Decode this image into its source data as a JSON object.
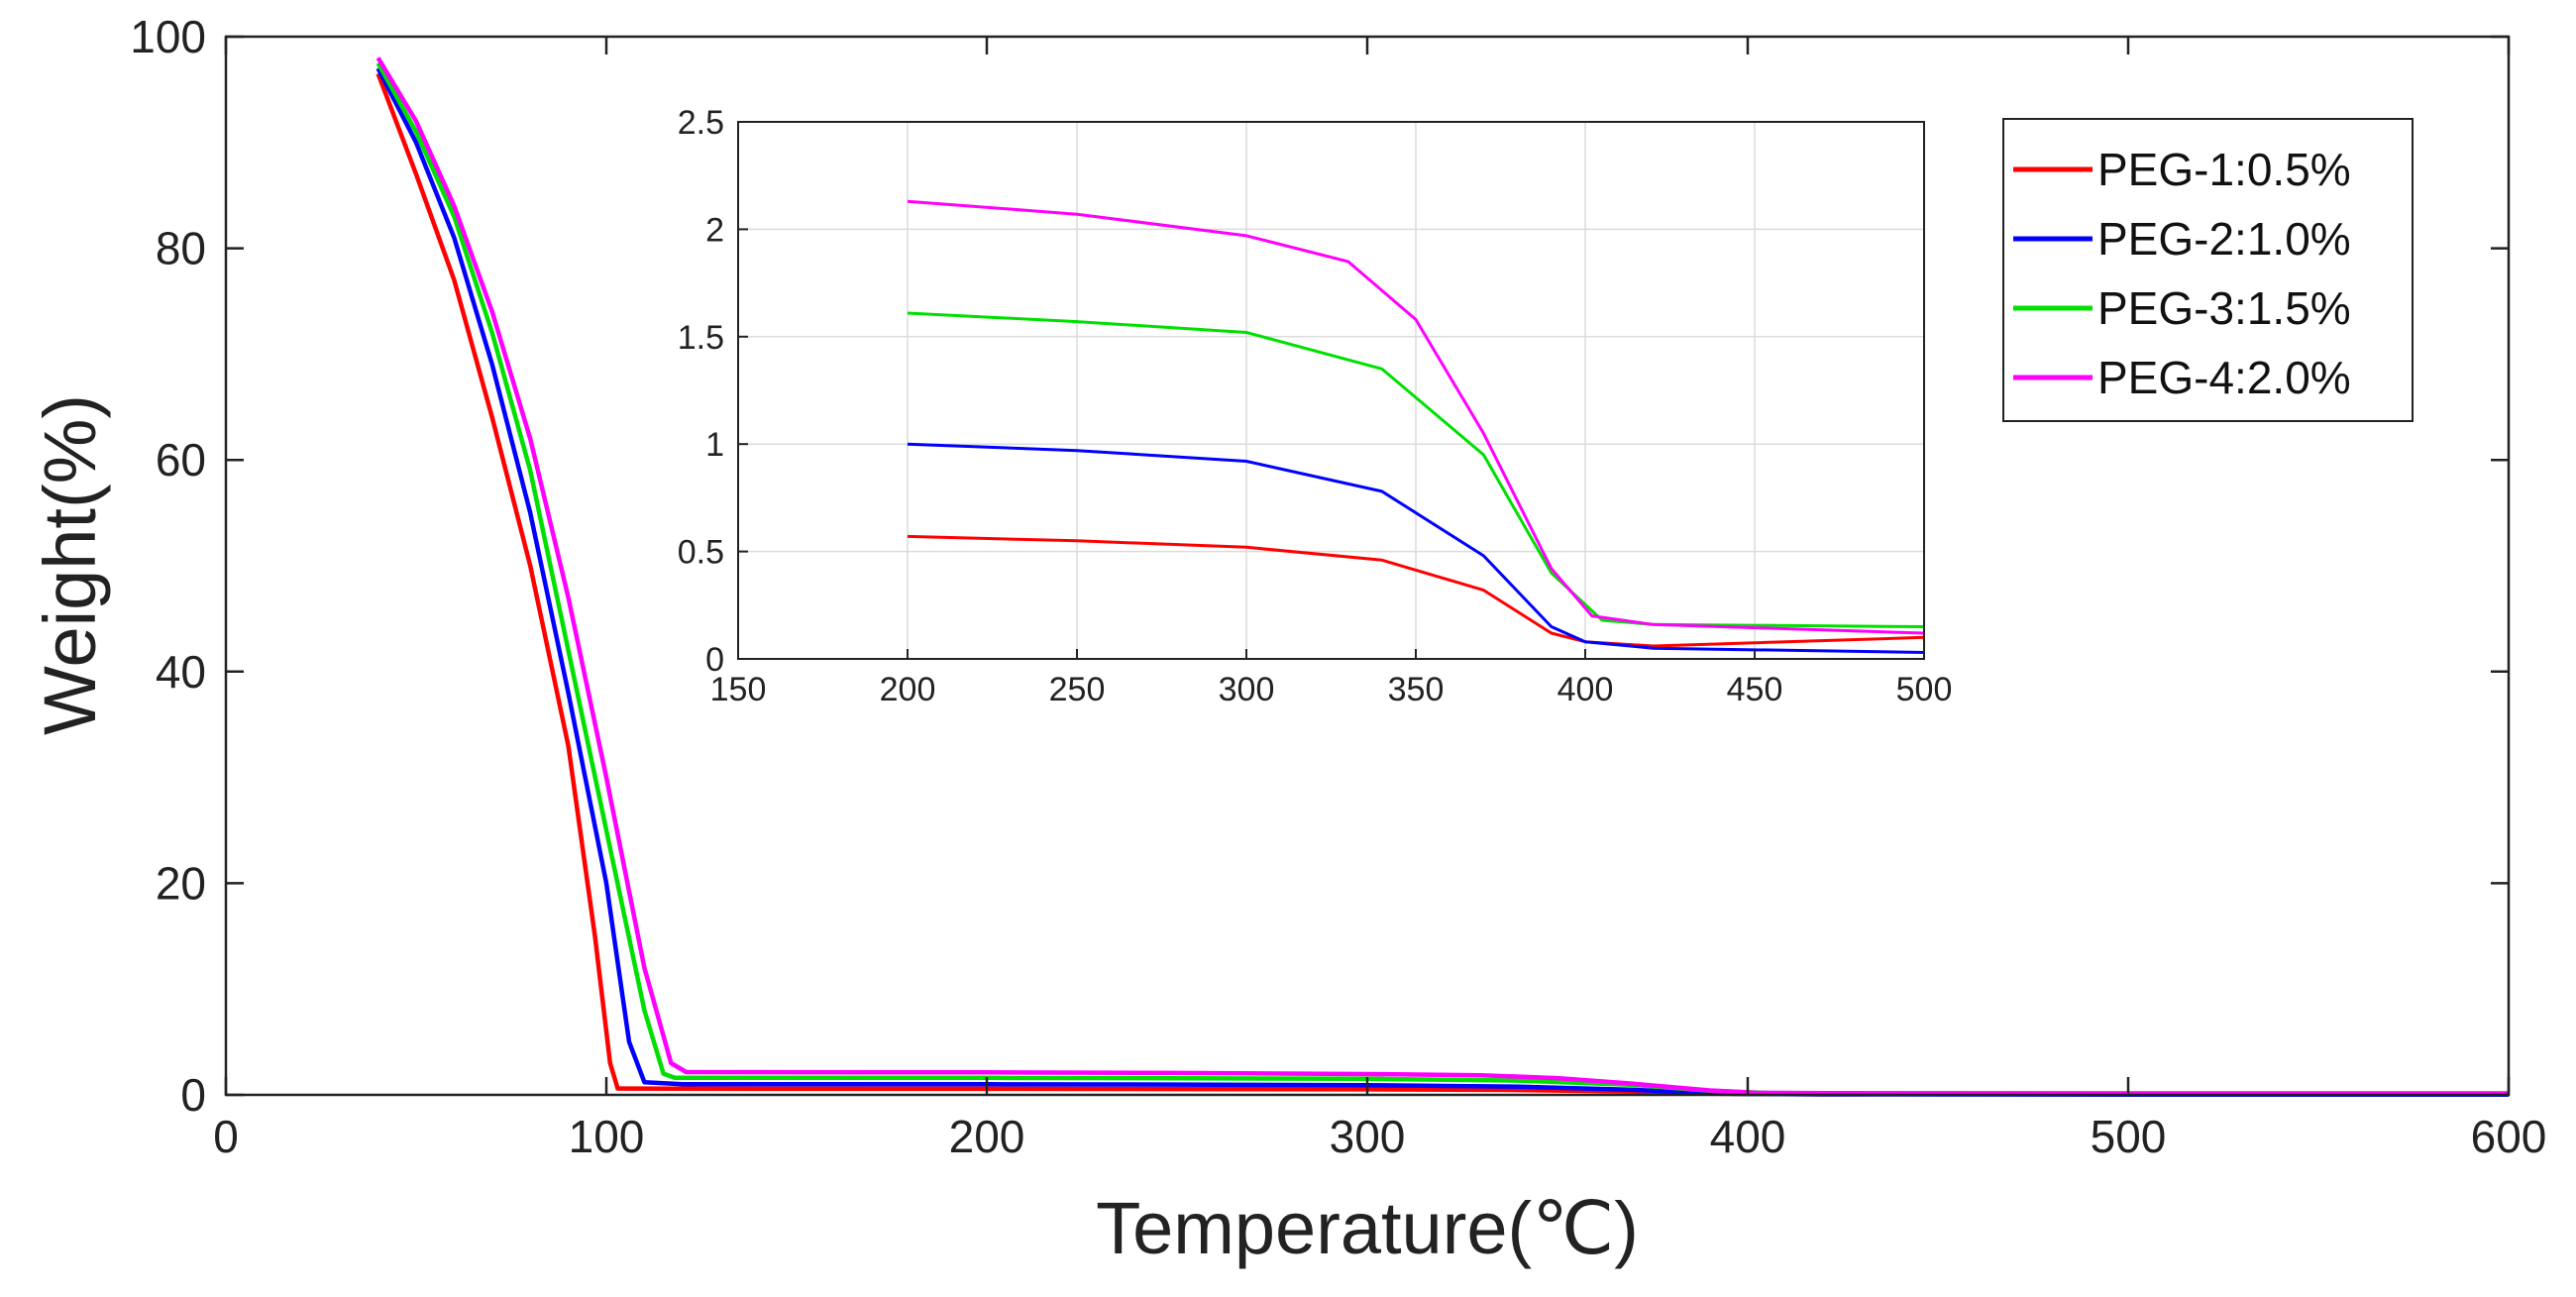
{
  "chart_data": [
    {
      "type": "line",
      "xlabel": "Temperature(℃)",
      "ylabel": "Weight(%)",
      "xlim": [
        0,
        600
      ],
      "ylim": [
        0,
        100
      ],
      "xticks": [
        0,
        100,
        200,
        300,
        400,
        500,
        600
      ],
      "yticks": [
        0,
        20,
        40,
        60,
        80,
        100
      ],
      "xtick_labels": [
        "0",
        "100",
        "200",
        "300",
        "400",
        "500",
        "600"
      ],
      "ytick_labels": [
        "0",
        "20",
        "40",
        "60",
        "80",
        "100"
      ],
      "grid": false,
      "legend_position": "top-right",
      "series": [
        {
          "name": "PEG-1:0.5%",
          "color": "#ff0000",
          "points": [
            [
              40,
              96.5
            ],
            [
              50,
              87
            ],
            [
              60,
              77
            ],
            [
              70,
              64
            ],
            [
              80,
              50
            ],
            [
              90,
              33
            ],
            [
              97,
              15
            ],
            [
              101,
              3
            ],
            [
              103,
              0.6
            ],
            [
              120,
              0.58
            ],
            [
              200,
              0.57
            ],
            [
              250,
              0.55
            ],
            [
              300,
              0.52
            ],
            [
              340,
              0.46
            ],
            [
              370,
              0.32
            ],
            [
              390,
              0.12
            ],
            [
              400,
              0.08
            ],
            [
              420,
              0.06
            ],
            [
              500,
              0.1
            ],
            [
              600,
              0.1
            ]
          ]
        },
        {
          "name": "PEG-2:1.0%",
          "color": "#0000ff",
          "points": [
            [
              40,
              97
            ],
            [
              50,
              90
            ],
            [
              60,
              81
            ],
            [
              70,
              69
            ],
            [
              80,
              55
            ],
            [
              90,
              38
            ],
            [
              100,
              20
            ],
            [
              106,
              5
            ],
            [
              110,
              1.2
            ],
            [
              120,
              1.0
            ],
            [
              200,
              1.0
            ],
            [
              250,
              0.97
            ],
            [
              300,
              0.92
            ],
            [
              340,
              0.78
            ],
            [
              370,
              0.48
            ],
            [
              390,
              0.15
            ],
            [
              400,
              0.08
            ],
            [
              420,
              0.05
            ],
            [
              500,
              0.03
            ],
            [
              600,
              0.03
            ]
          ]
        },
        {
          "name": "PEG-3:1.5%",
          "color": "#00e000",
          "points": [
            [
              40,
              97.5
            ],
            [
              50,
              91
            ],
            [
              60,
              83
            ],
            [
              70,
              72
            ],
            [
              80,
              59
            ],
            [
              90,
              42
            ],
            [
              100,
              25
            ],
            [
              110,
              8
            ],
            [
              115,
              2
            ],
            [
              118,
              1.62
            ],
            [
              200,
              1.61
            ],
            [
              250,
              1.57
            ],
            [
              300,
              1.52
            ],
            [
              340,
              1.35
            ],
            [
              370,
              0.95
            ],
            [
              390,
              0.4
            ],
            [
              405,
              0.18
            ],
            [
              420,
              0.16
            ],
            [
              500,
              0.15
            ],
            [
              600,
              0.15
            ]
          ]
        },
        {
          "name": "PEG-4:2.0%",
          "color": "#ff00ff",
          "points": [
            [
              40,
              98
            ],
            [
              50,
              92
            ],
            [
              60,
              84
            ],
            [
              70,
              74
            ],
            [
              80,
              62
            ],
            [
              90,
              47
            ],
            [
              100,
              30
            ],
            [
              110,
              12
            ],
            [
              117,
              3
            ],
            [
              121,
              2.15
            ],
            [
              200,
              2.13
            ],
            [
              250,
              2.07
            ],
            [
              300,
              1.97
            ],
            [
              330,
              1.85
            ],
            [
              350,
              1.58
            ],
            [
              370,
              1.05
            ],
            [
              390,
              0.42
            ],
            [
              402,
              0.2
            ],
            [
              420,
              0.16
            ],
            [
              500,
              0.12
            ],
            [
              600,
              0.12
            ]
          ]
        }
      ]
    },
    {
      "type": "line",
      "inset": true,
      "xlim": [
        150,
        500
      ],
      "ylim": [
        0,
        2.5
      ],
      "xticks": [
        150,
        200,
        250,
        300,
        350,
        400,
        450,
        500
      ],
      "yticks": [
        0,
        0.5,
        1,
        1.5,
        2,
        2.5
      ],
      "xtick_labels": [
        "150",
        "200",
        "250",
        "300",
        "350",
        "400",
        "450",
        "500"
      ],
      "ytick_labels": [
        "0",
        "0.5",
        "1",
        "1.5",
        "2",
        "2.5"
      ],
      "grid": true,
      "series_ref": "same as main chart series (zoomed view)"
    }
  ],
  "legend": {
    "entries": [
      "PEG-1:0.5%",
      "PEG-2:1.0%",
      "PEG-3:1.5%",
      "PEG-4:2.0%"
    ]
  }
}
